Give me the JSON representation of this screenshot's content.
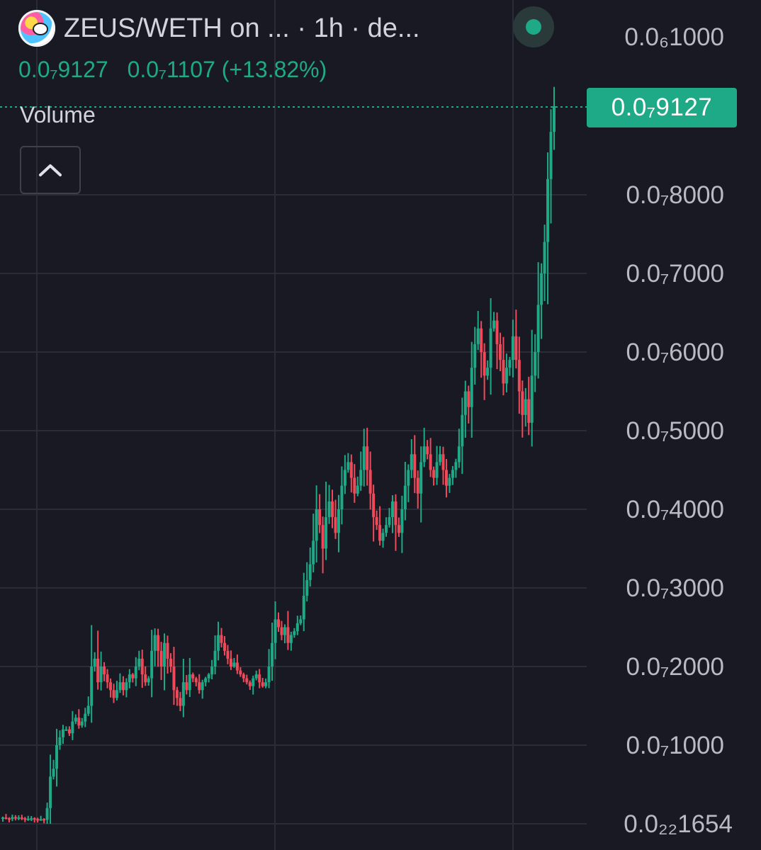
{
  "header": {
    "pair_title": "ZEUS/WETH on ... · 1h · de...",
    "ohlc_close": "0.0₇9127",
    "ohlc_change": "0.0₇1107 (+13.82%)",
    "volume_label": "Volume",
    "current_price_badge": "0.0₇9127"
  },
  "colors": {
    "background": "#181923",
    "up": "#1ea987",
    "down": "#f04a5a",
    "grid": "#2a2c38",
    "axis_text": "#b8bac4"
  },
  "icons": {
    "avatar": "token-avatar-icon",
    "live": "live-status-dot-icon",
    "collapse": "chevron-up-icon"
  },
  "chart_data": {
    "type": "candlestick",
    "timeframe": "1h",
    "y_axis_unit_note": "values are multiples of 1e-8 (0.0₇N = N×1e-11·... shown in subscript notation)",
    "y_tick_labels": [
      "0.0₆1000",
      "0.0₇9127",
      "0.0₇8000",
      "0.0₇7000",
      "0.0₇6000",
      "0.0₇5000",
      "0.0₇4000",
      "0.0₇3000",
      "0.0₇2000",
      "0.0₇1000",
      "0.0₂₂1654"
    ],
    "y_tick_values": [
      10000,
      9127,
      8000,
      7000,
      6000,
      5000,
      4000,
      3000,
      2000,
      1000,
      0
    ],
    "ylim": [
      0,
      10000
    ],
    "grid": true,
    "current_price": 9127,
    "series": [
      {
        "name": "ZEUS/WETH",
        "close_path": [
          80,
          70,
          60,
          85,
          75,
          80,
          70,
          60,
          65,
          70,
          60,
          55,
          60,
          50,
          200,
          600,
          700,
          1000,
          1100,
          1200,
          1200,
          1150,
          1300,
          1350,
          1250,
          1300,
          1400,
          1500,
          2000,
          2100,
          1800,
          2000,
          1900,
          1800,
          1700,
          1600,
          1700,
          1800,
          1700,
          1800,
          1900,
          1850,
          2000,
          2100,
          1900,
          1800,
          1850,
          2200,
          2400,
          2200,
          2000,
          2300,
          2100,
          2000,
          1700,
          1600,
          1500,
          1800,
          1700,
          1900,
          1850,
          1800,
          1700,
          1800,
          1850,
          1900,
          2000,
          2200,
          2400,
          2300,
          2200,
          2100,
          2000,
          2050,
          1950,
          1900,
          1850,
          1800,
          1750,
          1850,
          1900,
          1800,
          1750,
          1800,
          2000,
          2300,
          2600,
          2500,
          2400,
          2500,
          2300,
          2400,
          2450,
          2550,
          2600,
          2900,
          3100,
          3300,
          3600,
          4000,
          3800,
          3500,
          3900,
          4100,
          3900,
          3700,
          4000,
          4300,
          4500,
          4600,
          4400,
          4200,
          4300,
          4500,
          4800,
          4500,
          4200,
          3900,
          3800,
          3600,
          3700,
          3800,
          3900,
          4100,
          3800,
          3700,
          4000,
          4300,
          4500,
          4700,
          4400,
          4200,
          4600,
          4800,
          4700,
          4500,
          4400,
          4600,
          4700,
          4500,
          4300,
          4400,
          4500,
          4600,
          4800,
          5200,
          5500,
          5300,
          5800,
          6100,
          6300,
          6000,
          5700,
          5800,
          6300,
          6400,
          6100,
          5900,
          5600,
          5800,
          5900,
          6200,
          5900,
          5500,
          5200,
          5400,
          5100,
          5700,
          6000,
          6600,
          7000,
          7400,
          8200,
          8800,
          9127
        ]
      }
    ],
    "volume_pane": "collapsed"
  }
}
